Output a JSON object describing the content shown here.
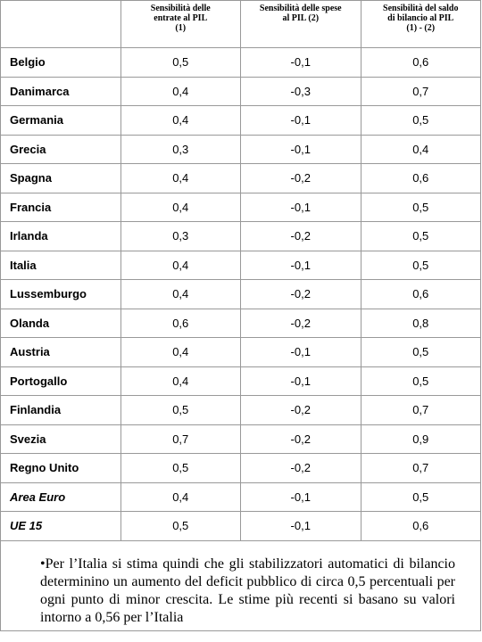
{
  "table": {
    "header": [
      [
        "Sensibilità delle",
        "entrate al PIL",
        "(1)"
      ],
      [
        "Sensibilità delle spese",
        "al PIL (2)"
      ],
      [
        "Sensibilità del saldo",
        "di bilancio al PIL",
        "(1) - (2)"
      ]
    ],
    "rows": [
      [
        "Belgio",
        "0,5",
        "-0,1",
        "0,6"
      ],
      [
        "Danimarca",
        "0,4",
        "-0,3",
        "0,7"
      ],
      [
        "Germania",
        "0,4",
        "-0,1",
        "0,5"
      ],
      [
        "Grecia",
        "0,3",
        "-0,1",
        "0,4"
      ],
      [
        "Spagna",
        "0,4",
        "-0,2",
        "0,6"
      ],
      [
        "Francia",
        "0,4",
        "-0,1",
        "0,5"
      ],
      [
        "Irlanda",
        "0,3",
        "-0,2",
        "0,5"
      ],
      [
        "Italia",
        "0,4",
        "-0,1",
        "0,5"
      ],
      [
        "Lussemburgo",
        "0,4",
        "-0,2",
        "0,6"
      ],
      [
        "Olanda",
        "0,6",
        "-0,2",
        "0,8"
      ],
      [
        "Austria",
        "0,4",
        "-0,1",
        "0,5"
      ],
      [
        "Portogallo",
        "0,4",
        "-0,1",
        "0,5"
      ],
      [
        "Finlandia",
        "0,5",
        "-0,2",
        "0,7"
      ],
      [
        "Svezia",
        "0,7",
        "-0,2",
        "0,9"
      ],
      [
        "Regno Unito",
        "0,5",
        "-0,2",
        "0,7"
      ],
      [
        "Area Euro",
        "0,4",
        "-0,1",
        "0,5"
      ],
      [
        "UE 15",
        "0,5",
        "-0,1",
        "0,6"
      ]
    ]
  },
  "note": "•Per l’Italia si stima quindi che gli stabilizzatori automatici di bilancio determinino un aumento del deficit pubblico di circa 0,5 percentuali per ogni punto di minor crescita. Le stime più recenti si basano su valori intorno a 0,56 per l’Italia"
}
